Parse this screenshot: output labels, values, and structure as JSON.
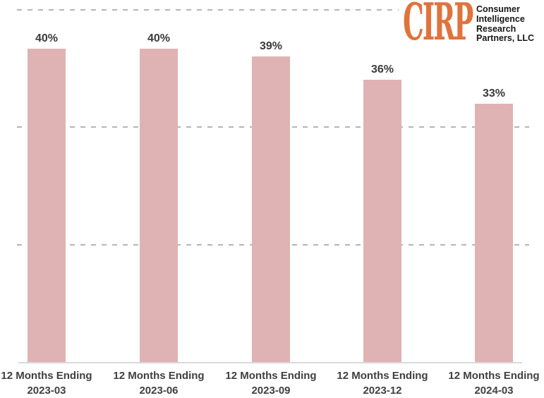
{
  "page": {
    "background": "#ffffff"
  },
  "logo": {
    "brand": "CIRP",
    "lines": [
      "Consumer",
      "Intelligence",
      "Research",
      "Partners, LLC"
    ]
  },
  "colors": {
    "bar": "#dfb3b3",
    "grid": "#b5b5b5",
    "axis": "#d9d9d9",
    "value-text": "#3a3a3a",
    "tick-text": "#404040",
    "logo-orange": "#e0733c",
    "logo-text": "#161616"
  },
  "chart_data": {
    "type": "bar",
    "title": "",
    "xlabel": "",
    "ylabel": "",
    "category_prefix": "12 Months Ending",
    "categories": [
      "2023-03",
      "2023-06",
      "2023-09",
      "2023-12",
      "2024-03"
    ],
    "values": [
      40,
      40,
      39,
      36,
      33
    ],
    "value_labels": [
      "40%",
      "40%",
      "39%",
      "36%",
      "33%"
    ],
    "ylim": [
      0,
      45
    ],
    "gridline_values": [
      15,
      30,
      45
    ],
    "grid": "dashed horizontal gridlines",
    "legend": "none",
    "bar_color": "#dfb3b3"
  }
}
